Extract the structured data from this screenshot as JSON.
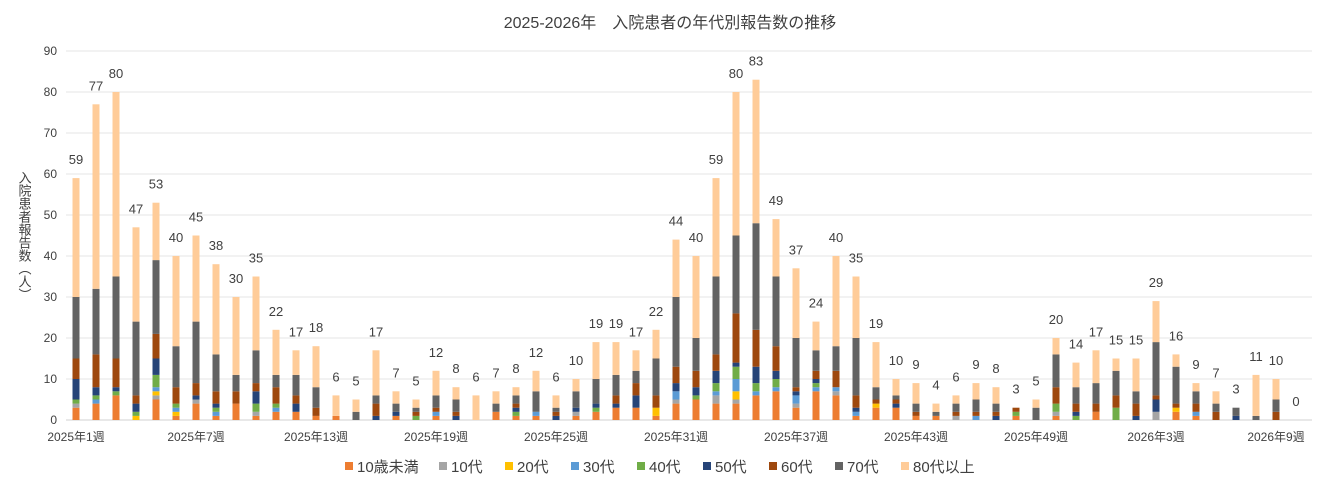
{
  "chart_data": {
    "type": "bar",
    "stacked": true,
    "title": "2025-2026年　入院患者の年代別報告数の推移",
    "ylabel": "入院患者報告数（人）",
    "xlabel": "",
    "ylim": [
      0,
      90
    ],
    "y_ticks": [
      0,
      10,
      20,
      30,
      40,
      50,
      60,
      70,
      80,
      90
    ],
    "grid": true,
    "legend_position": "bottom",
    "x_tick_labels": [
      "2025年1週",
      "2025年7週",
      "2025年13週",
      "2025年19週",
      "2025年25週",
      "2025年31週",
      "2025年37週",
      "2025年43週",
      "2025年49週",
      "2026年3週",
      "2026年9週"
    ],
    "totals": [
      59,
      77,
      80,
      47,
      53,
      40,
      45,
      38,
      30,
      35,
      22,
      17,
      18,
      6,
      5,
      17,
      7,
      5,
      12,
      8,
      6,
      7,
      8,
      12,
      6,
      10,
      19,
      19,
      17,
      22,
      44,
      40,
      59,
      80,
      83,
      49,
      37,
      24,
      40,
      35,
      19,
      10,
      9,
      4,
      6,
      9,
      8,
      3,
      5,
      20,
      14,
      17,
      15,
      15,
      29,
      16,
      9,
      7,
      3,
      11,
      10,
      0
    ],
    "series": [
      {
        "name": "10歳未満",
        "color": "#ED7D31",
        "values": [
          3,
          4,
          6,
          0,
          5,
          1,
          4,
          1,
          4,
          1,
          2,
          2,
          1,
          1,
          0,
          0,
          1,
          0,
          1,
          0,
          0,
          2,
          1,
          1,
          0,
          1,
          2,
          3,
          3,
          1,
          4,
          5,
          4,
          4,
          6,
          7,
          3,
          7,
          6,
          1,
          3,
          3,
          1,
          1,
          0,
          0,
          0,
          1,
          0,
          1,
          0,
          2,
          0,
          0,
          0,
          2,
          1,
          0,
          0,
          0,
          0,
          0
        ]
      },
      {
        "name": "10代",
        "color": "#A5A5A5",
        "values": [
          1,
          0,
          0,
          0,
          1,
          0,
          1,
          0,
          0,
          1,
          0,
          0,
          0,
          0,
          0,
          0,
          0,
          0,
          0,
          0,
          0,
          0,
          0,
          0,
          0,
          1,
          0,
          0,
          0,
          0,
          1,
          0,
          2,
          1,
          0,
          0,
          1,
          0,
          1,
          0,
          0,
          0,
          0,
          0,
          1,
          0,
          0,
          0,
          0,
          1,
          0,
          0,
          0,
          0,
          2,
          0,
          0,
          0,
          0,
          0,
          0,
          0
        ]
      },
      {
        "name": "20代",
        "color": "#FFC000",
        "values": [
          0,
          0,
          0,
          1,
          1,
          1,
          0,
          0,
          0,
          0,
          0,
          0,
          0,
          0,
          0,
          0,
          0,
          0,
          0,
          0,
          0,
          0,
          0,
          0,
          0,
          0,
          0,
          0,
          0,
          2,
          0,
          0,
          0,
          2,
          0,
          0,
          0,
          0,
          0,
          0,
          1,
          0,
          0,
          0,
          0,
          0,
          0,
          0,
          0,
          0,
          0,
          0,
          0,
          0,
          0,
          1,
          0,
          0,
          0,
          0,
          0,
          0
        ]
      },
      {
        "name": "30代",
        "color": "#5B9BD5",
        "values": [
          0,
          1,
          0,
          0,
          1,
          1,
          0,
          1,
          0,
          0,
          1,
          0,
          0,
          0,
          0,
          0,
          0,
          0,
          1,
          0,
          0,
          0,
          0,
          1,
          0,
          0,
          0,
          0,
          0,
          0,
          2,
          0,
          1,
          3,
          1,
          1,
          2,
          1,
          1,
          1,
          0,
          0,
          0,
          0,
          0,
          1,
          0,
          0,
          0,
          0,
          0,
          0,
          0,
          0,
          0,
          0,
          1,
          0,
          0,
          0,
          0,
          0
        ]
      },
      {
        "name": "40代",
        "color": "#70AD47",
        "values": [
          1,
          1,
          1,
          1,
          3,
          1,
          0,
          1,
          0,
          2,
          1,
          0,
          0,
          0,
          0,
          0,
          0,
          1,
          0,
          0,
          0,
          0,
          1,
          0,
          0,
          0,
          1,
          0,
          0,
          0,
          0,
          1,
          2,
          3,
          2,
          2,
          0,
          1,
          0,
          0,
          0,
          0,
          0,
          0,
          0,
          0,
          0,
          1,
          0,
          2,
          1,
          0,
          3,
          0,
          0,
          0,
          0,
          0,
          0,
          0,
          0,
          0
        ]
      },
      {
        "name": "50代",
        "color": "#264478",
        "values": [
          5,
          2,
          1,
          2,
          4,
          0,
          1,
          1,
          0,
          3,
          0,
          2,
          0,
          0,
          0,
          1,
          1,
          0,
          0,
          1,
          0,
          0,
          1,
          0,
          1,
          1,
          1,
          1,
          3,
          0,
          2,
          2,
          3,
          1,
          4,
          2,
          1,
          1,
          0,
          1,
          0,
          1,
          0,
          0,
          0,
          0,
          1,
          0,
          0,
          0,
          1,
          0,
          0,
          1,
          3,
          0,
          0,
          0,
          1,
          0,
          0,
          0
        ]
      },
      {
        "name": "60代",
        "color": "#9E480E",
        "values": [
          5,
          8,
          7,
          2,
          6,
          4,
          3,
          3,
          3,
          2,
          4,
          2,
          2,
          0,
          0,
          3,
          0,
          1,
          1,
          1,
          0,
          0,
          1,
          0,
          1,
          0,
          0,
          2,
          3,
          3,
          4,
          4,
          4,
          12,
          9,
          6,
          1,
          2,
          4,
          3,
          1,
          1,
          1,
          0,
          1,
          1,
          1,
          1,
          0,
          4,
          2,
          2,
          3,
          3,
          1,
          1,
          2,
          2,
          0,
          0,
          2,
          0
        ]
      },
      {
        "name": "70代",
        "color": "#636363",
        "values": [
          15,
          16,
          20,
          18,
          18,
          10,
          15,
          9,
          4,
          8,
          3,
          5,
          5,
          0,
          2,
          2,
          2,
          1,
          3,
          3,
          0,
          2,
          2,
          5,
          1,
          4,
          6,
          5,
          3,
          9,
          17,
          8,
          19,
          19,
          26,
          17,
          12,
          5,
          6,
          14,
          3,
          1,
          2,
          1,
          2,
          3,
          2,
          0,
          3,
          8,
          4,
          5,
          6,
          3,
          13,
          9,
          3,
          2,
          2,
          1,
          3,
          0
        ]
      },
      {
        "name": "80代以上",
        "color": "#FFCC99",
        "values": [
          29,
          45,
          45,
          23,
          14,
          22,
          21,
          22,
          19,
          18,
          11,
          6,
          10,
          5,
          3,
          11,
          3,
          2,
          6,
          3,
          6,
          3,
          2,
          5,
          3,
          3,
          9,
          8,
          5,
          7,
          14,
          20,
          24,
          35,
          35,
          14,
          17,
          7,
          22,
          15,
          11,
          4,
          5,
          2,
          2,
          4,
          4,
          0,
          2,
          4,
          6,
          8,
          3,
          8,
          10,
          3,
          2,
          3,
          0,
          10,
          5,
          0
        ]
      }
    ]
  }
}
